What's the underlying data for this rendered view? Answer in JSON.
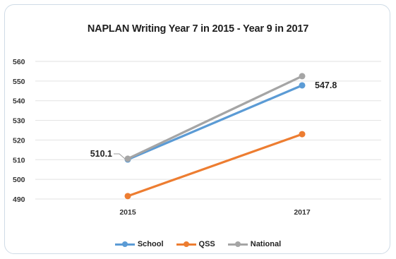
{
  "chart_data": {
    "type": "line",
    "title": "NAPLAN Writing Year 7 in 2015 - Year 9 in 2017",
    "categories": [
      "2015",
      "2017"
    ],
    "ylim": [
      490,
      560
    ],
    "yticks": [
      "490",
      "500",
      "510",
      "520",
      "530",
      "540",
      "550",
      "560"
    ],
    "grid": true,
    "legend_position": "bottom",
    "series": [
      {
        "name": "School",
        "values": [
          510.1,
          547.8
        ],
        "color": "#5b9bd5"
      },
      {
        "name": "QSS",
        "values": [
          491.5,
          523.0
        ],
        "color": "#ed7d31"
      },
      {
        "name": "National",
        "values": [
          510.5,
          552.5
        ],
        "color": "#a5a5a5"
      }
    ],
    "data_labels": [
      {
        "text": "510.1",
        "series": "School",
        "index": 0
      },
      {
        "text": "547.8",
        "series": "School",
        "index": 1
      }
    ]
  }
}
